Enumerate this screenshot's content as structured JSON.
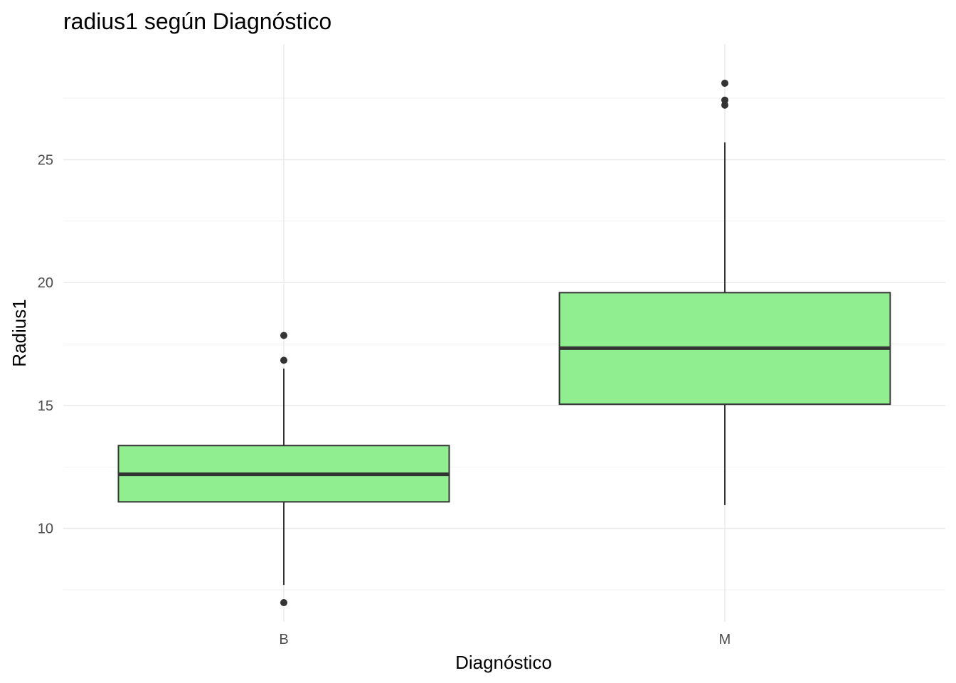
{
  "chart_data": {
    "type": "box",
    "title": "radius1 según Diagnóstico",
    "xlabel": "Diagnóstico",
    "ylabel": "Radius1",
    "categories": [
      "B",
      "M"
    ],
    "ylim": [
      6.2,
      29.7
    ],
    "yticks": [
      10,
      15,
      20,
      25
    ],
    "grid": true,
    "fill_color": "#90ee90",
    "line_color": "#333333",
    "boxes": [
      {
        "category": "B",
        "whisker_low": 7.7,
        "q1": 11.08,
        "median": 12.2,
        "q3": 13.37,
        "whisker_high": 16.5,
        "outliers": [
          6.98,
          16.84,
          17.85
        ]
      },
      {
        "category": "M",
        "whisker_low": 10.95,
        "q1": 15.05,
        "median": 17.33,
        "q3": 19.59,
        "whisker_high": 25.7,
        "outliers": [
          27.22,
          27.42,
          28.11
        ]
      }
    ]
  }
}
